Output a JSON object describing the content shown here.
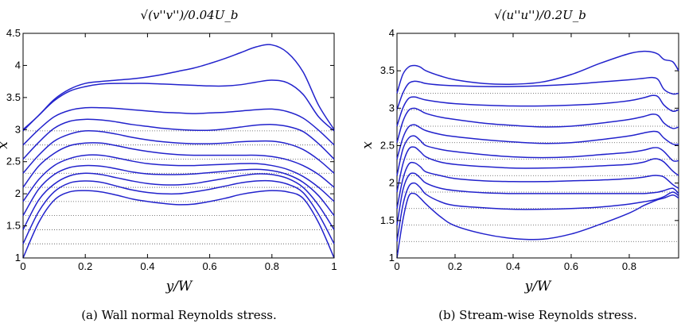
{
  "chart_data": [
    {
      "type": "line",
      "title": "√(v''v'')/0.04U_b",
      "xlabel": "y/W",
      "ylabel": "x",
      "xlim": [
        0,
        1
      ],
      "ylim": [
        1,
        4.5
      ],
      "xticks": [
        "0",
        "0.2",
        "0.4",
        "0.6",
        "0.8",
        "1"
      ],
      "yticks": [
        "1",
        "1.5",
        "2",
        "2.5",
        "3",
        "3.5",
        "4",
        "4.5"
      ],
      "caption": "(a) Wall normal Reynolds stress.",
      "baselines": [
        1.22,
        1.44,
        1.66,
        1.88,
        2.1,
        2.32,
        2.54,
        2.76,
        2.98
      ],
      "series_color": "#2222cc",
      "baseline_color": "#555555",
      "x": [
        0,
        0.05,
        0.1,
        0.15,
        0.2,
        0.25,
        0.3,
        0.35,
        0.4,
        0.45,
        0.5,
        0.55,
        0.6,
        0.65,
        0.7,
        0.75,
        0.8,
        0.85,
        0.9,
        0.95,
        1.0
      ],
      "series": [
        {
          "values": [
            1.0,
            1.55,
            1.9,
            2.03,
            2.05,
            2.03,
            1.98,
            1.92,
            1.88,
            1.85,
            1.83,
            1.84,
            1.88,
            1.93,
            1.99,
            2.03,
            2.05,
            2.03,
            1.93,
            1.55,
            1.0
          ]
        },
        {
          "values": [
            1.22,
            1.72,
            2.03,
            2.17,
            2.2,
            2.18,
            2.12,
            2.06,
            2.02,
            2.0,
            2.0,
            2.03,
            2.07,
            2.12,
            2.17,
            2.2,
            2.2,
            2.15,
            2.02,
            1.68,
            1.22
          ]
        },
        {
          "values": [
            1.44,
            1.9,
            2.15,
            2.28,
            2.32,
            2.3,
            2.25,
            2.2,
            2.16,
            2.14,
            2.14,
            2.16,
            2.2,
            2.24,
            2.28,
            2.31,
            2.3,
            2.24,
            2.1,
            1.82,
            1.44
          ]
        },
        {
          "values": [
            1.66,
            2.07,
            2.3,
            2.41,
            2.44,
            2.43,
            2.39,
            2.34,
            2.31,
            2.3,
            2.3,
            2.31,
            2.33,
            2.35,
            2.37,
            2.38,
            2.36,
            2.3,
            2.18,
            1.97,
            1.66
          ]
        },
        {
          "values": [
            1.88,
            2.22,
            2.44,
            2.55,
            2.6,
            2.6,
            2.56,
            2.51,
            2.47,
            2.45,
            2.44,
            2.44,
            2.45,
            2.46,
            2.47,
            2.47,
            2.44,
            2.38,
            2.27,
            2.1,
            1.88
          ]
        },
        {
          "values": [
            2.1,
            2.43,
            2.63,
            2.75,
            2.79,
            2.79,
            2.75,
            2.7,
            2.66,
            2.63,
            2.61,
            2.6,
            2.6,
            2.6,
            2.6,
            2.6,
            2.58,
            2.53,
            2.44,
            2.3,
            2.1
          ]
        },
        {
          "values": [
            2.32,
            2.6,
            2.82,
            2.93,
            2.98,
            2.97,
            2.93,
            2.88,
            2.84,
            2.81,
            2.79,
            2.78,
            2.78,
            2.79,
            2.81,
            2.82,
            2.82,
            2.78,
            2.69,
            2.53,
            2.32
          ]
        },
        {
          "values": [
            2.54,
            2.8,
            3.02,
            3.13,
            3.16,
            3.15,
            3.12,
            3.08,
            3.05,
            3.02,
            3.0,
            2.99,
            2.99,
            3.01,
            3.04,
            3.07,
            3.08,
            3.05,
            2.97,
            2.78,
            2.54
          ]
        },
        {
          "values": [
            2.76,
            3.0,
            3.2,
            3.3,
            3.34,
            3.34,
            3.33,
            3.31,
            3.29,
            3.27,
            3.26,
            3.25,
            3.26,
            3.27,
            3.29,
            3.31,
            3.32,
            3.28,
            3.18,
            2.99,
            2.76
          ]
        },
        {
          "values": [
            2.98,
            3.22,
            3.45,
            3.6,
            3.67,
            3.71,
            3.72,
            3.72,
            3.72,
            3.71,
            3.7,
            3.69,
            3.68,
            3.68,
            3.7,
            3.74,
            3.77,
            3.73,
            3.55,
            3.2,
            2.98
          ]
        },
        {
          "values": [
            3.0,
            3.22,
            3.47,
            3.63,
            3.72,
            3.75,
            3.77,
            3.79,
            3.82,
            3.86,
            3.91,
            3.96,
            4.03,
            4.11,
            4.2,
            4.29,
            4.32,
            4.2,
            3.9,
            3.38,
            3.0
          ]
        }
      ]
    },
    {
      "type": "line",
      "title": "√(u''u'')/0.2U_b",
      "xlabel": "y/W",
      "ylabel": "x",
      "xlim": [
        0,
        0.97
      ],
      "ylim": [
        1,
        4
      ],
      "xticks": [
        "0",
        "0.2",
        "0.4",
        "0.6",
        "0.8"
      ],
      "yticks": [
        "1",
        "1.5",
        "2",
        "2.5",
        "3",
        "3.5",
        "4"
      ],
      "caption": "(b) Stream-wise Reynolds stress.",
      "baselines": [
        1.22,
        1.44,
        1.66,
        1.88,
        2.1,
        2.32,
        2.54,
        2.76,
        2.98,
        3.2
      ],
      "series_color": "#2222cc",
      "baseline_color": "#555555",
      "x": [
        0,
        0.02,
        0.04,
        0.06,
        0.08,
        0.1,
        0.15,
        0.2,
        0.3,
        0.4,
        0.5,
        0.6,
        0.7,
        0.8,
        0.85,
        0.88,
        0.9,
        0.92,
        0.95,
        0.97
      ],
      "series": [
        {
          "values": [
            1.0,
            1.5,
            1.82,
            1.86,
            1.8,
            1.72,
            1.55,
            1.43,
            1.32,
            1.26,
            1.25,
            1.32,
            1.45,
            1.6,
            1.7,
            1.75,
            1.78,
            1.8,
            1.84,
            1.8
          ]
        },
        {
          "values": [
            1.22,
            1.7,
            1.95,
            2.0,
            1.94,
            1.85,
            1.75,
            1.7,
            1.67,
            1.65,
            1.65,
            1.66,
            1.68,
            1.72,
            1.75,
            1.77,
            1.79,
            1.82,
            1.88,
            1.83
          ]
        },
        {
          "values": [
            1.44,
            1.9,
            2.1,
            2.13,
            2.07,
            2.0,
            1.93,
            1.9,
            1.87,
            1.86,
            1.86,
            1.86,
            1.86,
            1.86,
            1.86,
            1.87,
            1.88,
            1.9,
            1.93,
            1.86
          ]
        },
        {
          "values": [
            1.66,
            2.05,
            2.25,
            2.27,
            2.22,
            2.15,
            2.1,
            2.06,
            2.03,
            2.02,
            2.02,
            2.03,
            2.04,
            2.06,
            2.08,
            2.1,
            2.1,
            2.08,
            1.98,
            1.93
          ]
        },
        {
          "values": [
            1.88,
            2.25,
            2.45,
            2.48,
            2.42,
            2.35,
            2.28,
            2.25,
            2.22,
            2.2,
            2.2,
            2.21,
            2.23,
            2.25,
            2.28,
            2.32,
            2.32,
            2.28,
            2.16,
            2.1
          ]
        },
        {
          "values": [
            2.1,
            2.45,
            2.6,
            2.63,
            2.57,
            2.5,
            2.45,
            2.42,
            2.38,
            2.35,
            2.34,
            2.35,
            2.38,
            2.41,
            2.44,
            2.47,
            2.47,
            2.42,
            2.3,
            2.3
          ]
        },
        {
          "values": [
            2.32,
            2.6,
            2.75,
            2.78,
            2.74,
            2.7,
            2.65,
            2.62,
            2.58,
            2.55,
            2.53,
            2.54,
            2.58,
            2.63,
            2.67,
            2.69,
            2.68,
            2.6,
            2.52,
            2.52
          ]
        },
        {
          "values": [
            2.54,
            2.82,
            2.97,
            3.0,
            2.97,
            2.93,
            2.88,
            2.85,
            2.8,
            2.77,
            2.75,
            2.76,
            2.8,
            2.85,
            2.89,
            2.92,
            2.9,
            2.8,
            2.73,
            2.75
          ]
        },
        {
          "values": [
            2.76,
            3.0,
            3.13,
            3.15,
            3.13,
            3.11,
            3.08,
            3.06,
            3.04,
            3.03,
            3.03,
            3.04,
            3.06,
            3.1,
            3.14,
            3.17,
            3.15,
            3.04,
            2.96,
            2.98
          ]
        },
        {
          "values": [
            2.98,
            3.2,
            3.33,
            3.36,
            3.35,
            3.33,
            3.31,
            3.3,
            3.29,
            3.29,
            3.3,
            3.32,
            3.35,
            3.38,
            3.4,
            3.41,
            3.38,
            3.25,
            3.19,
            3.2
          ]
        },
        {
          "values": [
            3.2,
            3.45,
            3.55,
            3.57,
            3.55,
            3.5,
            3.43,
            3.38,
            3.33,
            3.32,
            3.35,
            3.45,
            3.6,
            3.73,
            3.76,
            3.75,
            3.72,
            3.65,
            3.62,
            3.5
          ]
        }
      ]
    }
  ]
}
